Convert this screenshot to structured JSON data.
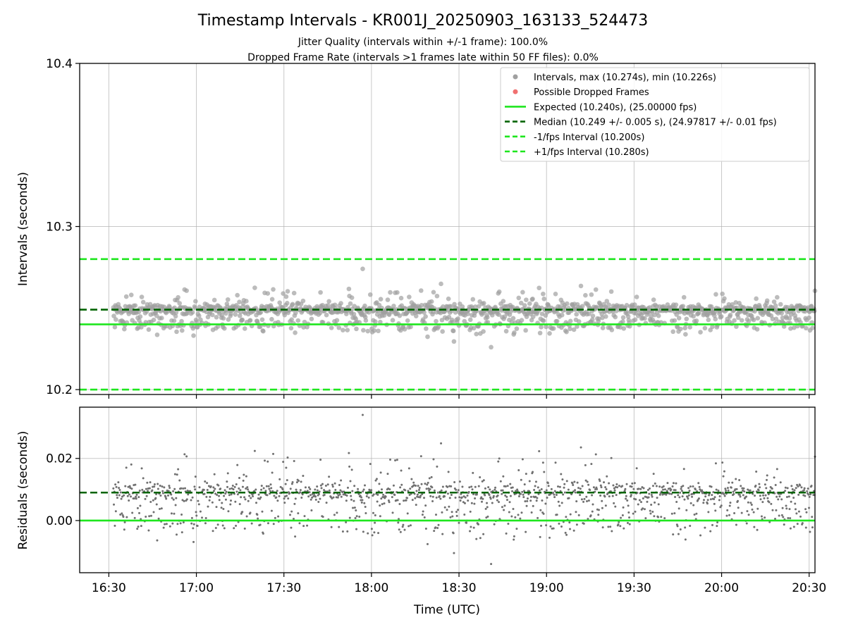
{
  "chart_data": [
    {
      "type": "scatter",
      "title": "Timestamp Intervals - KR001J_20250903_163133_524473",
      "subtitle_lines": [
        "Jitter Quality (intervals within +/-1 frame): 100.0%",
        "Dropped Frame Rate (intervals >1 frames late within 50 FF files): 0.0%"
      ],
      "ylabel": "Intervals (seconds)",
      "ylim": [
        10.197,
        10.4
      ],
      "xlim": [
        "16:20",
        "20:32"
      ],
      "yticks": [
        {
          "value": 10.2,
          "label": "10.2"
        },
        {
          "value": 10.3,
          "label": "10.3"
        },
        {
          "value": 10.4,
          "label": "10.4"
        }
      ],
      "grid": true,
      "legend_position": "top-right",
      "legend": [
        {
          "kind": "dot",
          "color": "#a0a0a0",
          "label": "Intervals, max (10.274s), min (10.226s)"
        },
        {
          "kind": "dot",
          "color": "#f07070",
          "label": "Possible Dropped Frames"
        },
        {
          "kind": "solid",
          "color": "#1ee61e",
          "label": "Expected (10.240s), (25.00000 fps)"
        },
        {
          "kind": "dashed",
          "color": "#006400",
          "label": "Median (10.249 +/- 0.005 s), (24.97817 +/- 0.01 fps)"
        },
        {
          "kind": "dashed",
          "color": "#1ee61e",
          "label": "-1/fps Interval (10.200s)"
        },
        {
          "kind": "dashed",
          "color": "#1ee61e",
          "label": "+1/fps Interval (10.280s)"
        }
      ],
      "reference_lines": [
        {
          "name": "expected",
          "y": 10.24,
          "color": "#1ee61e",
          "style": "solid"
        },
        {
          "name": "median",
          "y": 10.249,
          "color": "#006400",
          "style": "dashed"
        },
        {
          "name": "minus-one-fps",
          "y": 10.2,
          "color": "#1ee61e",
          "style": "dashed"
        },
        {
          "name": "plus-one-fps",
          "y": 10.28,
          "color": "#1ee61e",
          "style": "dashed"
        }
      ],
      "series": [
        {
          "name": "Intervals",
          "color": "#a0a0a0",
          "time_start": "16:31:33",
          "time_end": "20:32:00",
          "count": 1410,
          "median": 10.249,
          "spread": 0.005,
          "max": 10.274,
          "min": 10.226,
          "max_time": "17:57"
        }
      ]
    },
    {
      "type": "scatter",
      "xlabel": "Time (UTC)",
      "ylabel": "Residuals (seconds)",
      "ylim": [
        -0.0168,
        0.0365
      ],
      "xlim": [
        "16:20",
        "20:32"
      ],
      "yticks": [
        {
          "value": 0.0,
          "label": "0.00"
        },
        {
          "value": 0.02,
          "label": "0.02"
        }
      ],
      "xticks": [
        {
          "value": "16:30",
          "label": "16:30"
        },
        {
          "value": "17:00",
          "label": "17:00"
        },
        {
          "value": "17:30",
          "label": "17:30"
        },
        {
          "value": "18:00",
          "label": "18:00"
        },
        {
          "value": "18:30",
          "label": "18:30"
        },
        {
          "value": "19:00",
          "label": "19:00"
        },
        {
          "value": "19:30",
          "label": "19:30"
        },
        {
          "value": "20:00",
          "label": "20:00"
        },
        {
          "value": "20:30",
          "label": "20:30"
        }
      ],
      "grid": true,
      "reference_lines": [
        {
          "name": "zero",
          "y": 0.0,
          "color": "#1ee61e",
          "style": "solid"
        },
        {
          "name": "median-residual",
          "y": 0.009,
          "color": "#006400",
          "style": "dashed"
        }
      ],
      "series": [
        {
          "name": "Residuals",
          "color": "#707070",
          "derived_from": "Intervals",
          "offset": 10.24,
          "max": 0.034,
          "min": -0.014
        }
      ]
    }
  ]
}
